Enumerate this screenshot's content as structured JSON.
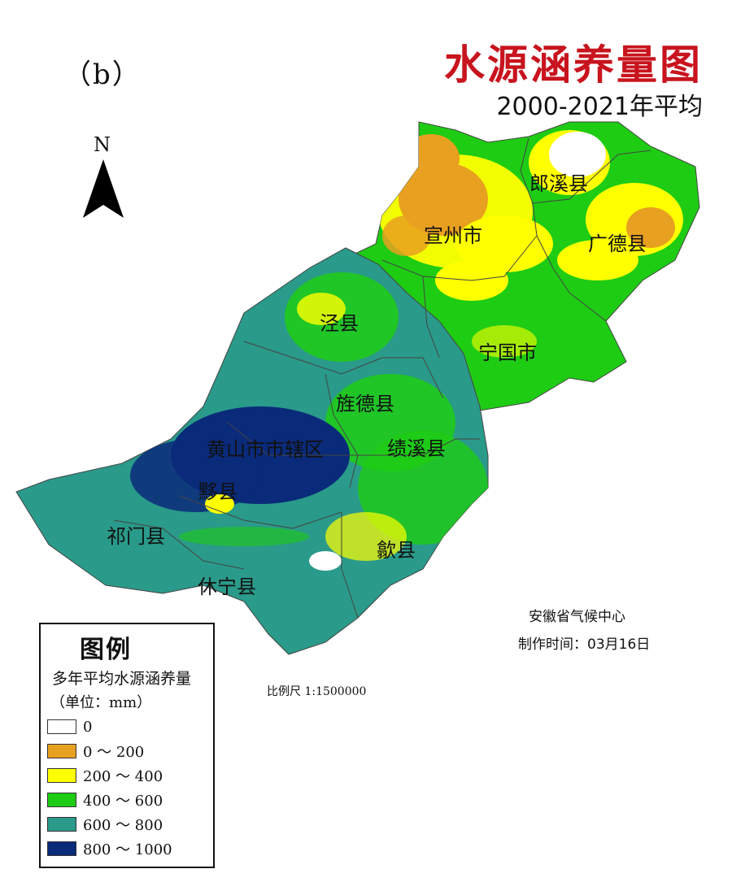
{
  "panel_label": "（b）",
  "title": "水源涵养量图",
  "subtitle": "2000-2021年平均",
  "north_label": "N",
  "regions": [
    {
      "name": "郎溪县"
    },
    {
      "name": "宣州市"
    },
    {
      "name": "广德县"
    },
    {
      "name": "泾县"
    },
    {
      "name": "宁国市"
    },
    {
      "name": "旌德县"
    },
    {
      "name": "黄山市市辖区"
    },
    {
      "name": "绩溪县"
    },
    {
      "name": "黟县"
    },
    {
      "name": "祁门县"
    },
    {
      "name": "歙县"
    },
    {
      "name": "休宁县"
    }
  ],
  "legend": {
    "title": "图例",
    "subtitle": "多年平均水源涵养量",
    "unit": "（单位：mm）",
    "items": [
      {
        "label": "0",
        "color": "#ffffff"
      },
      {
        "label": "0 ～ 200",
        "color": "#e8a020"
      },
      {
        "label": "200 ～ 400",
        "color": "#ffff00"
      },
      {
        "label": "400 ～ 600",
        "color": "#1ecc14"
      },
      {
        "label": "600 ～ 800",
        "color": "#2a9a8a"
      },
      {
        "label": "800 ～ 1000",
        "color": "#0a2a7a"
      }
    ]
  },
  "scale": "比例尺 1:1500000",
  "credit": {
    "org": "安徽省气候中心",
    "date": "制作时间：03月16日"
  }
}
